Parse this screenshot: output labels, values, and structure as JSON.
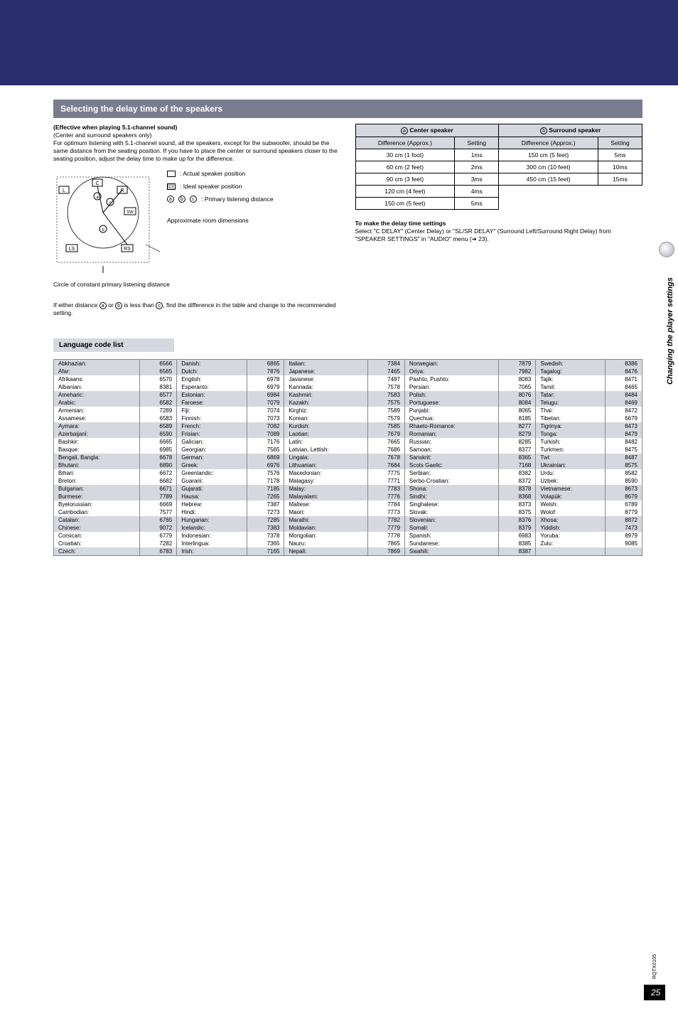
{
  "section": {
    "title": "Selecting the delay time of the speakers"
  },
  "intro": {
    "line1": "(Effective when playing 5.1-channel sound)",
    "line2": "(Center and surround speakers only)",
    "para": "For optimum listening with 5.1-channel sound, all the speakers, except for the subwoofer, should be the same distance from the seating position. If you have to place the center or surround speakers closer to the seating position, adjust the delay time to make up for the difference."
  },
  "diagram": {
    "speakers": {
      "L": "L",
      "C": "C",
      "R": "R",
      "SW": "SW",
      "LS": "LS",
      "RS": "RS"
    },
    "legend_actual": ": Actual speaker position",
    "legend_ideal": ": Ideal speaker position",
    "legend_primary_prefix_a": "a",
    "legend_primary_prefix_b": "b",
    "legend_primary_prefix_c": "c",
    "legend_primary": ": Primary listening distance",
    "legend_approx": "Approximate room dimensions",
    "circle_caption": "Circle of constant primary listening distance"
  },
  "note": {
    "p1a": "If either distance ",
    "a": "a",
    "or": " or ",
    "b": "b",
    "mid": " is less than ",
    "c": "c",
    "p1b": ", find the difference in the table and change to the recommended setting."
  },
  "center_table": {
    "h1a": "a",
    "h1": " Center speaker",
    "h2a": "b",
    "h2": " Surround speaker",
    "diff": "Difference (Approx.)",
    "setting": "Setting",
    "rows": [
      {
        "d1": "30 cm (1 foot)",
        "s1": "1ms",
        "d2": "150 cm (5 feet)",
        "s2": "5ms"
      },
      {
        "d1": "60 cm (2 feet)",
        "s1": "2ms",
        "d2": "300 cm (10 feet)",
        "s2": "10ms"
      },
      {
        "d1": "90 cm (3 feet)",
        "s1": "3ms",
        "d2": "450 cm (15 feet)",
        "s2": "15ms"
      },
      {
        "d1": "120 cm (4 feet)",
        "s1": "4ms",
        "d2": "",
        "s2": ""
      },
      {
        "d1": "150 cm (5 feet)",
        "s1": "5ms",
        "d2": "",
        "s2": ""
      }
    ]
  },
  "delay_settings": {
    "heading": "To make the delay time settings",
    "text": "Select \"C DELAY\" (Center Delay) or \"SL/SR DELAY\" (Surround Left/Surround Right Delay) from \"SPEAKER SETTINGS\" in \"AUDIO\" menu (➜ 23)."
  },
  "lang_header": "Language code list",
  "langs": {
    "columns": [
      [
        [
          "Abkhazian:",
          "6566",
          1
        ],
        [
          "Afar:",
          "6565",
          1
        ],
        [
          "Afrikaans:",
          "6570",
          0
        ],
        [
          "Albanian:",
          "8381",
          0
        ],
        [
          "Ameharic:",
          "6577",
          1
        ],
        [
          "Arabic:",
          "6582",
          1
        ],
        [
          "Armenian:",
          "7289",
          0
        ],
        [
          "Assamese:",
          "6583",
          0
        ],
        [
          "Aymara:",
          "6589",
          1
        ],
        [
          "Azerbaijani:",
          "6590",
          1
        ],
        [
          "Bashkir:",
          "6665",
          0
        ],
        [
          "Basque:",
          "6985",
          0
        ],
        [
          "Bengali, Bangla:",
          "6678",
          1
        ],
        [
          "Bhutani:",
          "6890",
          1
        ],
        [
          "Bihari:",
          "6672",
          0
        ],
        [
          "Breton:",
          "6682",
          0
        ],
        [
          "Bulgarian:",
          "6671",
          1
        ],
        [
          "Burmese:",
          "7789",
          1
        ],
        [
          "Byelorussian:",
          "6669",
          0
        ],
        [
          "Cambodian:",
          "7577",
          0
        ],
        [
          "Catalan:",
          "6765",
          1
        ],
        [
          "Chinese:",
          "9072",
          1
        ],
        [
          "Corsican:",
          "6779",
          0
        ],
        [
          "Croatian:",
          "7282",
          0
        ],
        [
          "Czech:",
          "6783",
          1
        ]
      ],
      [
        [
          "Danish:",
          "6865",
          1
        ],
        [
          "Dutch:",
          "7876",
          1
        ],
        [
          "English:",
          "6978",
          0
        ],
        [
          "Esperanto:",
          "6979",
          0
        ],
        [
          "Estonian:",
          "6984",
          1
        ],
        [
          "Faroese:",
          "7079",
          1
        ],
        [
          "Fiji:",
          "7074",
          0
        ],
        [
          "Finnish:",
          "7073",
          0
        ],
        [
          "French:",
          "7082",
          1
        ],
        [
          "Frisian:",
          "7089",
          1
        ],
        [
          "Galician:",
          "7176",
          0
        ],
        [
          "Georgian:",
          "7565",
          0
        ],
        [
          "German:",
          "6869",
          1
        ],
        [
          "Greek:",
          "6976",
          1
        ],
        [
          "Greenlandic:",
          "7576",
          0
        ],
        [
          "Guarani:",
          "7178",
          0
        ],
        [
          "Gujarati:",
          "7185",
          1
        ],
        [
          "Hausa:",
          "7265",
          1
        ],
        [
          "Hebrew:",
          "7387",
          0
        ],
        [
          "Hindi:",
          "7273",
          0
        ],
        [
          "Hungarian:",
          "7285",
          1
        ],
        [
          "Icelandic:",
          "7383",
          1
        ],
        [
          "Indonesian:",
          "7378",
          0
        ],
        [
          "Interlingua:",
          "7365",
          0
        ],
        [
          "Irish:",
          "7165",
          1
        ]
      ],
      [
        [
          "Italian:",
          "7384",
          1
        ],
        [
          "Japanese:",
          "7465",
          1
        ],
        [
          "Javanese:",
          "7487",
          0
        ],
        [
          "Kannada:",
          "7578",
          0
        ],
        [
          "Kashmiri:",
          "7583",
          1
        ],
        [
          "Kazakh:",
          "7575",
          1
        ],
        [
          "Kirghiz:",
          "7589",
          0
        ],
        [
          "Korean:",
          "7579",
          0
        ],
        [
          "Kurdish:",
          "7585",
          1
        ],
        [
          "Laotian:",
          "7679",
          1
        ],
        [
          "Latin:",
          "7665",
          0
        ],
        [
          "Latvian, Lettish:",
          "7686",
          0
        ],
        [
          "Lingala:",
          "7678",
          1
        ],
        [
          "Lithuanian:",
          "7684",
          1
        ],
        [
          "Macedonian:",
          "7775",
          0
        ],
        [
          "Malagasy:",
          "7771",
          0
        ],
        [
          "Malay:",
          "7783",
          1
        ],
        [
          "Malayalam:",
          "7776",
          1
        ],
        [
          "Maltese:",
          "7784",
          0
        ],
        [
          "Maori:",
          "7773",
          0
        ],
        [
          "Marathi:",
          "7782",
          1
        ],
        [
          "Moldavian:",
          "7779",
          1
        ],
        [
          "Mongolian:",
          "7778",
          0
        ],
        [
          "Nauru:",
          "7865",
          0
        ],
        [
          "Nepali:",
          "7869",
          1
        ]
      ],
      [
        [
          "Norwegian:",
          "7879",
          1
        ],
        [
          "Oriya:",
          "7982",
          1
        ],
        [
          "Pashto, Pushto:",
          "8083",
          0
        ],
        [
          "Persian:",
          "7065",
          0
        ],
        [
          "Polish:",
          "8076",
          1
        ],
        [
          "Portuguese:",
          "8084",
          1
        ],
        [
          "Punjabi:",
          "8065",
          0
        ],
        [
          "Quechua:",
          "8185",
          0
        ],
        [
          "Rhaeto-Romance:",
          "8277",
          1
        ],
        [
          "Romanian:",
          "8279",
          1
        ],
        [
          "Russian:",
          "8285",
          0
        ],
        [
          "Samoan:",
          "8377",
          0
        ],
        [
          "Sanskrit:",
          "8365",
          1
        ],
        [
          "Scots Gaelic:",
          "7168",
          1
        ],
        [
          "Serbian:",
          "8382",
          0
        ],
        [
          "Serbo-Croatian:",
          "8372",
          0
        ],
        [
          "Shona:",
          "8378",
          1
        ],
        [
          "Sindhi:",
          "8368",
          1
        ],
        [
          "Singhalese:",
          "8373",
          0
        ],
        [
          "Slovak:",
          "8375",
          0
        ],
        [
          "Slovenian:",
          "8376",
          1
        ],
        [
          "Somali:",
          "8379",
          1
        ],
        [
          "Spanish:",
          "6983",
          0
        ],
        [
          "Sundanese:",
          "8385",
          0
        ],
        [
          "Swahili:",
          "8387",
          1
        ]
      ],
      [
        [
          "Swedish:",
          "8386",
          1
        ],
        [
          "Tagalog:",
          "8476",
          1
        ],
        [
          "Tajik:",
          "8471",
          0
        ],
        [
          "Tamil:",
          "8465",
          0
        ],
        [
          "Tatar:",
          "8484",
          1
        ],
        [
          "Telugu:",
          "8469",
          1
        ],
        [
          "Thai:",
          "8472",
          0
        ],
        [
          "Tibetan:",
          "6679",
          0
        ],
        [
          "Tigrinya:",
          "8473",
          1
        ],
        [
          "Tonga:",
          "8479",
          1
        ],
        [
          "Turkish:",
          "8482",
          0
        ],
        [
          "Turkmen:",
          "8475",
          0
        ],
        [
          "Twi:",
          "8487",
          1
        ],
        [
          "Ukrainian:",
          "8575",
          1
        ],
        [
          "Urdu:",
          "8582",
          0
        ],
        [
          "Uzbek:",
          "8590",
          0
        ],
        [
          "Vietnamese:",
          "8673",
          1
        ],
        [
          "Volapük:",
          "8679",
          1
        ],
        [
          "Welsh:",
          "6789",
          0
        ],
        [
          "Wolof:",
          "8779",
          0
        ],
        [
          "Xhosa:",
          "8872",
          1
        ],
        [
          "Yiddish:",
          "7473",
          1
        ],
        [
          "Yoruba:",
          "8979",
          0
        ],
        [
          "Zulu:",
          "9085",
          0
        ]
      ]
    ]
  },
  "side": {
    "label": "Changing the player settings"
  },
  "footer": {
    "code": "RQTX0105",
    "page": "25"
  },
  "colors": {
    "topbar": "#2a2e6e",
    "section_bg": "#7a7d8f",
    "table_hdr": "#d6d8e0"
  }
}
